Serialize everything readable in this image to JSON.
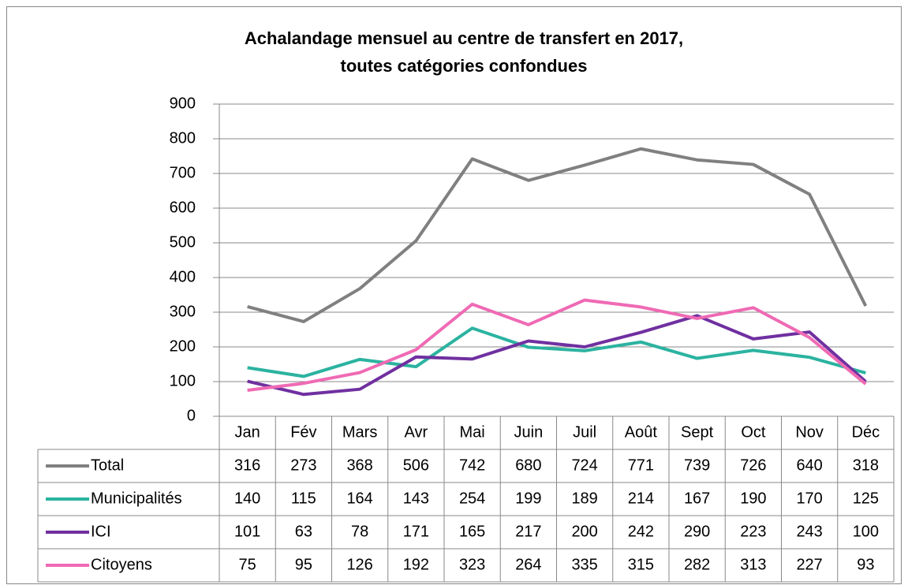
{
  "chart_data": {
    "type": "line",
    "title": [
      "Achalandage mensuel au centre de transfert en 2017,",
      "toutes catégories confondues"
    ],
    "categories": [
      "Jan",
      "Fév",
      "Mars",
      "Avr",
      "Mai",
      "Juin",
      "Juil",
      "Août",
      "Sept",
      "Oct",
      "Nov",
      "Déc"
    ],
    "series": [
      {
        "name": "Total",
        "color": "#808080",
        "values": [
          316,
          273,
          368,
          506,
          742,
          680,
          724,
          771,
          739,
          726,
          640,
          318
        ]
      },
      {
        "name": "Municipalités",
        "color": "#2bb3a0",
        "values": [
          140,
          115,
          164,
          143,
          254,
          199,
          189,
          214,
          167,
          190,
          170,
          125
        ]
      },
      {
        "name": "ICI",
        "color": "#7030a0",
        "values": [
          101,
          63,
          78,
          171,
          165,
          217,
          200,
          242,
          290,
          223,
          243,
          100
        ]
      },
      {
        "name": "Citoyens",
        "color": "#ef6ab4",
        "values": [
          75,
          95,
          126,
          192,
          323,
          264,
          335,
          315,
          282,
          313,
          227,
          93
        ]
      }
    ],
    "ylim": [
      0,
      900
    ],
    "yticks": [
      0,
      100,
      200,
      300,
      400,
      500,
      600,
      700,
      800,
      900
    ],
    "grid": true,
    "data_table": true
  }
}
